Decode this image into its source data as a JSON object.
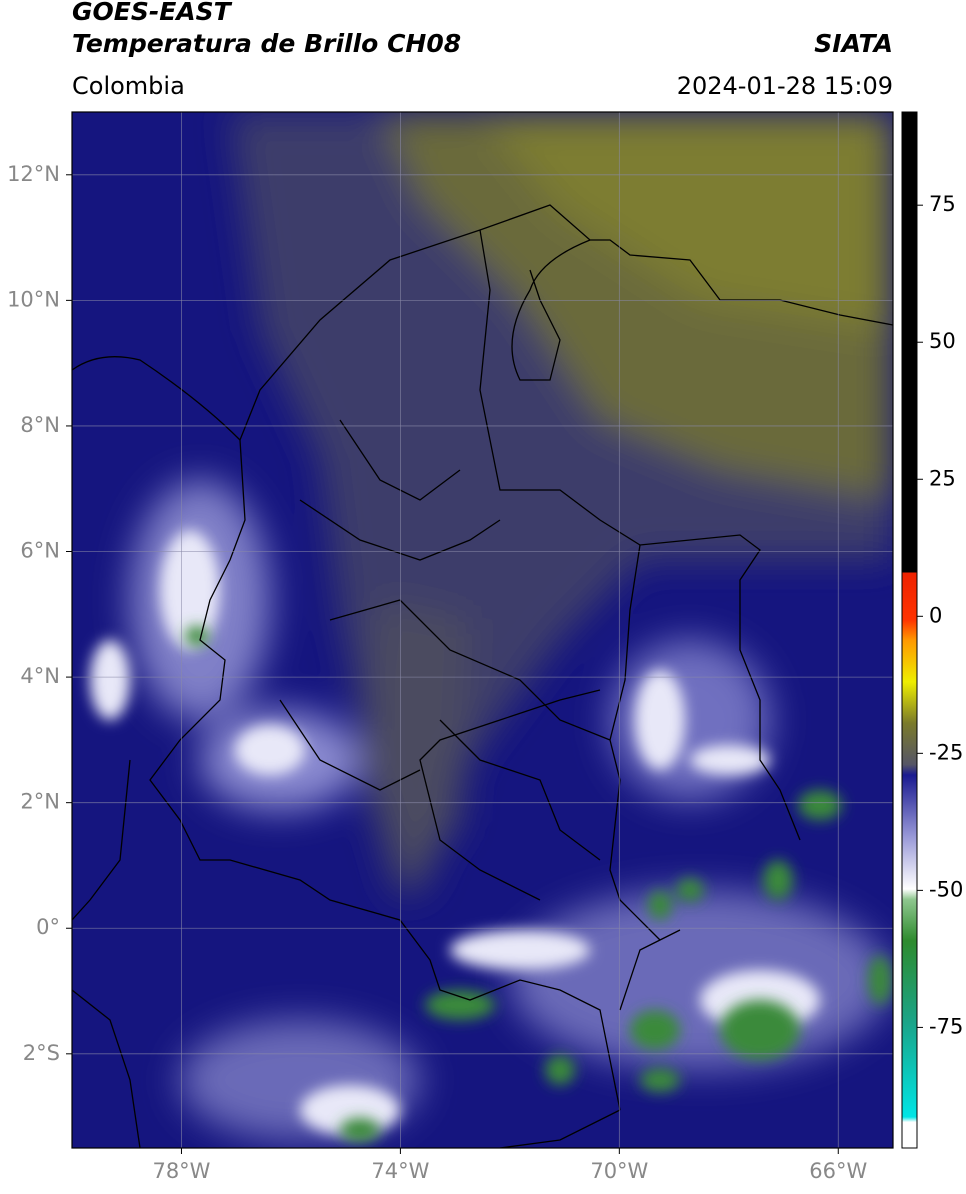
{
  "header": {
    "title": "GOES-EAST",
    "subtitle": "Temperatura de Brillo CH08",
    "region": "Colombia",
    "source": "SIATA",
    "datetime": "2024-01-28 15:09"
  },
  "map": {
    "xlim": [
      -80,
      -65
    ],
    "ylim": [
      -3.5,
      13
    ],
    "xticks": [
      {
        "value": -78,
        "label": "78°W"
      },
      {
        "value": -74,
        "label": "74°W"
      },
      {
        "value": -70,
        "label": "70°W"
      },
      {
        "value": -66,
        "label": "66°W"
      }
    ],
    "yticks": [
      {
        "value": 12,
        "label": "12°N"
      },
      {
        "value": 10,
        "label": "10°N"
      },
      {
        "value": 8,
        "label": "8°N"
      },
      {
        "value": 6,
        "label": "6°N"
      },
      {
        "value": 4,
        "label": "4°N"
      },
      {
        "value": 2,
        "label": "2°N"
      },
      {
        "value": 0,
        "label": "0°"
      },
      {
        "value": -2,
        "label": "2°S"
      }
    ],
    "grid": true
  },
  "colorbar": {
    "lim": [
      -97,
      92
    ],
    "ticks": [
      75,
      50,
      25,
      0,
      -25,
      -50,
      -75
    ]
  }
}
